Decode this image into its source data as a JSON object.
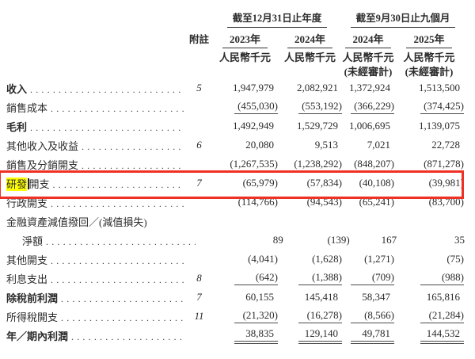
{
  "table": {
    "header": {
      "note_label": "附註",
      "groups": [
        {
          "title": "截至12月31日止年度"
        },
        {
          "title": "截至9月30日止九個月"
        }
      ],
      "years": [
        "2023年",
        "2024年",
        "2024年",
        "2025年"
      ],
      "units": [
        "人民幣千元",
        "人民幣千元",
        "人民幣千元",
        "人民幣千元"
      ],
      "unaudited": "(未經審計)"
    },
    "rows": [
      {
        "label": "收入",
        "note": "5",
        "values": [
          "1,947,979",
          "2,082,921",
          "1,372,924",
          "1,513,500"
        ]
      },
      {
        "label": "銷售成本",
        "note": "",
        "values": [
          "(455,030)",
          "(553,192)",
          "(366,229)",
          "(374,425)"
        ]
      },
      {
        "label": "毛利",
        "note": "",
        "values": [
          "1,492,949",
          "1,529,729",
          "1,006,695",
          "1,139,075"
        ]
      },
      {
        "label": "其他收入及收益",
        "note": "6",
        "values": [
          "20,080",
          "9,513",
          "7,021",
          "22,728"
        ]
      },
      {
        "label": "銷售及分銷開支",
        "note": "",
        "values": [
          "(1,267,535)",
          "(1,238,292)",
          "(848,207)",
          "(871,278)"
        ]
      },
      {
        "label_highlight": "研發",
        "label_rest": "開支",
        "note": "7",
        "values": [
          "(65,979)",
          "(57,834)",
          "(40,108)",
          "(39,981)"
        ]
      },
      {
        "label": "行政開支",
        "note": "",
        "values": [
          "(114,766)",
          "(94,543)",
          "(65,241)",
          "(83,700)"
        ]
      },
      {
        "label": "金融資產減值撥回／(減值損失)",
        "note": "",
        "values": [
          "",
          "",
          "",
          ""
        ]
      },
      {
        "label": "淨額",
        "note": "",
        "values": [
          "89",
          "(139)",
          "167",
          "35"
        ]
      },
      {
        "label": "其他開支",
        "note": "",
        "values": [
          "(4,041)",
          "(1,628)",
          "(1,271)",
          "(75)"
        ]
      },
      {
        "label": "利息支出",
        "note": "8",
        "values": [
          "(642)",
          "(1,388)",
          "(709)",
          "(988)"
        ]
      },
      {
        "label": "除稅前利潤",
        "note": "7",
        "values": [
          "60,155",
          "145,418",
          "58,347",
          "165,816"
        ]
      },
      {
        "label": "所得稅開支",
        "note": "11",
        "values": [
          "(21,320)",
          "(16,278)",
          "(8,566)",
          "(21,284)"
        ]
      },
      {
        "label": "年／期內利潤",
        "note": "",
        "values": [
          "38,835",
          "129,140",
          "49,781",
          "144,532"
        ]
      }
    ]
  },
  "annotation": {
    "highlighted_text": "研發",
    "highlight_color": "#ffff00",
    "box_color": "#ee3124"
  }
}
